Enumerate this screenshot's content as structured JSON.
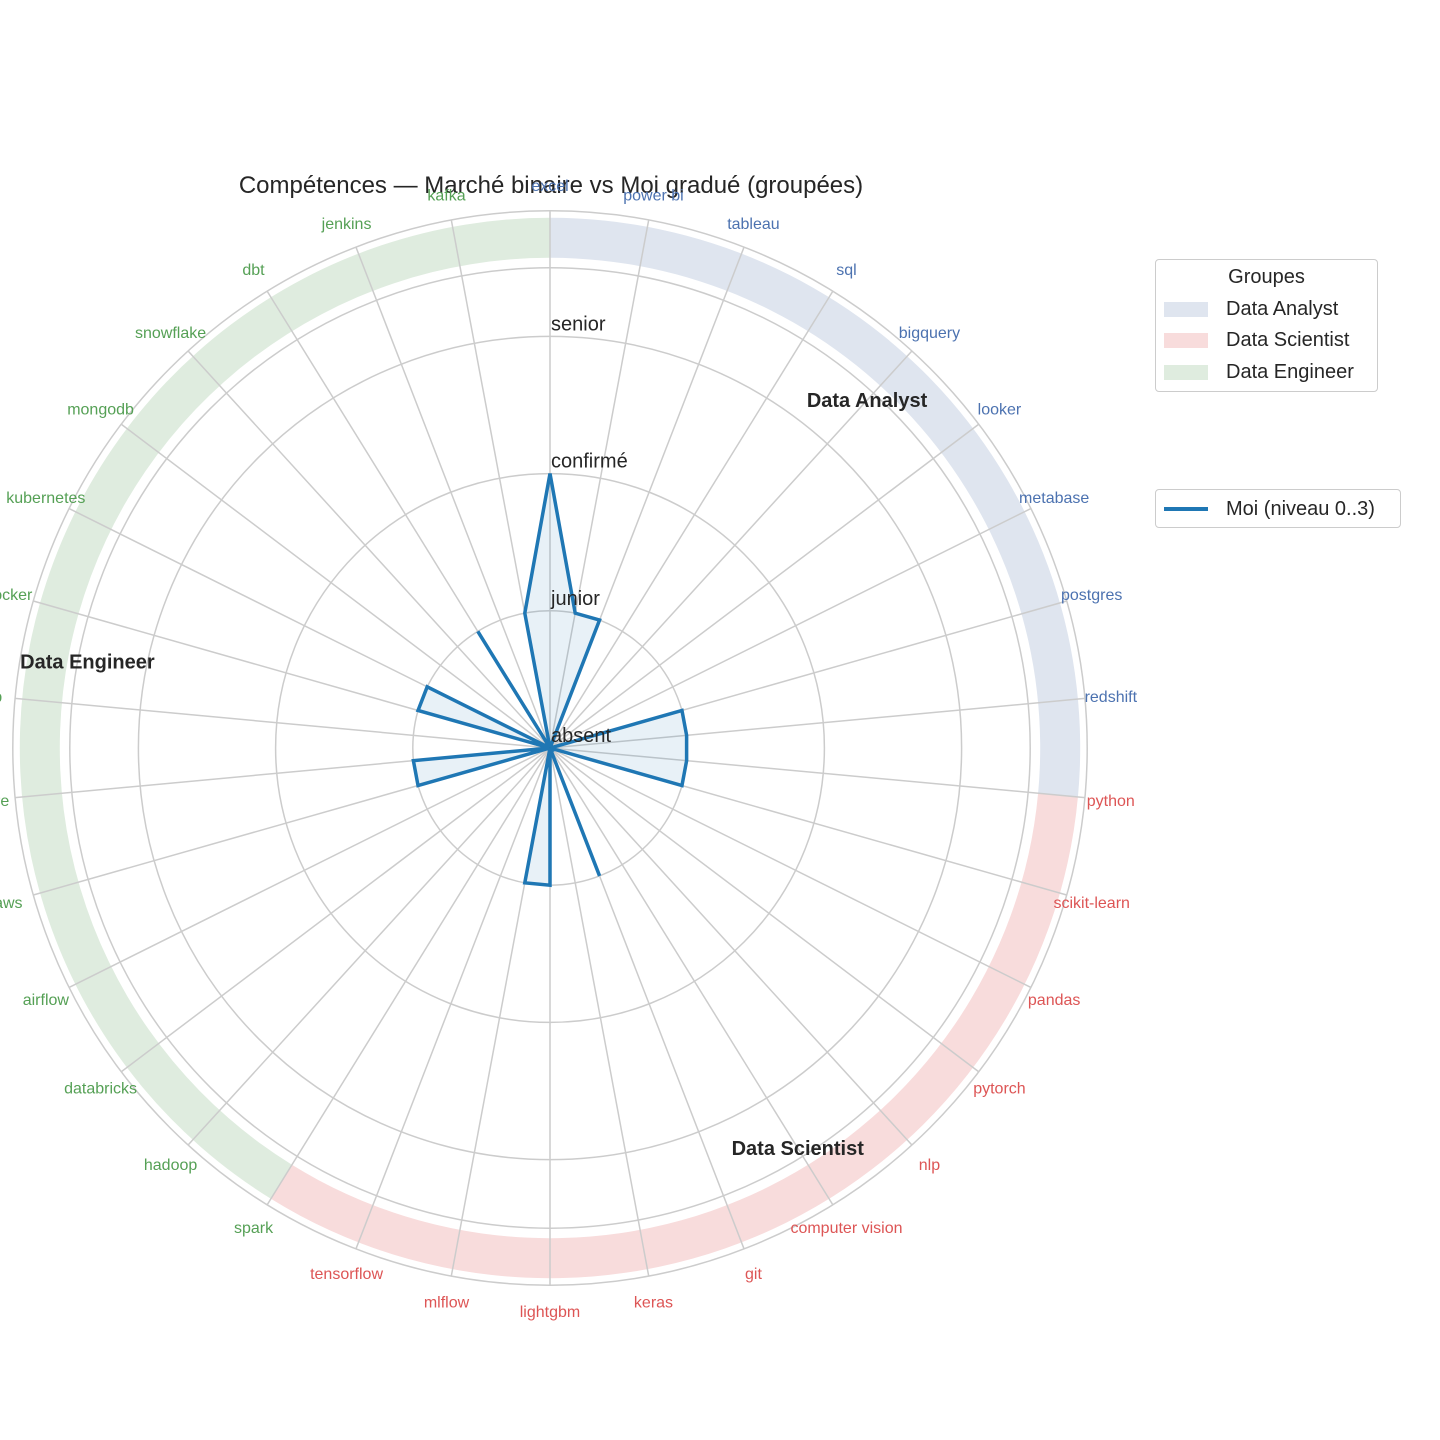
{
  "chart_data": {
    "type": "radar",
    "title": "Compétences — Marché binaire vs Moi gradué (groupées)",
    "levels": [
      "absent",
      "junior",
      "confirmé",
      "senior"
    ],
    "rlim": [
      0,
      3.5
    ],
    "grid": true,
    "skills": [
      "excel",
      "power bi",
      "tableau",
      "sql",
      "bigquery",
      "looker",
      "metabase",
      "postgres",
      "redshift",
      "python",
      "scikit-learn",
      "pandas",
      "pytorch",
      "nlp",
      "computer vision",
      "git",
      "keras",
      "lightgbm",
      "mlflow",
      "tensorflow",
      "spark",
      "hadoop",
      "databricks",
      "airflow",
      "aws",
      "azure",
      "gcp",
      "docker",
      "kubernetes",
      "mongodb",
      "snowflake",
      "dbt",
      "jenkins",
      "kafka"
    ],
    "skill_groups": [
      "Data Analyst",
      "Data Analyst",
      "Data Analyst",
      "Data Analyst",
      "Data Analyst",
      "Data Analyst",
      "Data Analyst",
      "Data Analyst",
      "Data Analyst",
      "Data Scientist",
      "Data Scientist",
      "Data Scientist",
      "Data Scientist",
      "Data Scientist",
      "Data Scientist",
      "Data Scientist",
      "Data Scientist",
      "Data Scientist",
      "Data Scientist",
      "Data Scientist",
      "Data Engineer",
      "Data Engineer",
      "Data Engineer",
      "Data Engineer",
      "Data Engineer",
      "Data Engineer",
      "Data Engineer",
      "Data Engineer",
      "Data Engineer",
      "Data Engineer",
      "Data Engineer",
      "Data Engineer",
      "Data Engineer",
      "Data Engineer"
    ],
    "groups": [
      {
        "name": "Data Analyst",
        "color": "#4c72b0",
        "band_color": "#dfe5ef"
      },
      {
        "name": "Data Scientist",
        "color": "#dd5555",
        "band_color": "#f8dcdc"
      },
      {
        "name": "Data Engineer",
        "color": "#55a055",
        "band_color": "#dfecdf"
      }
    ],
    "series": [
      {
        "name": "Moi (niveau 0..3)",
        "color": "#1f77b4",
        "values": [
          2,
          1,
          1,
          0,
          0,
          0,
          0,
          1,
          1,
          1,
          1,
          0,
          0,
          0,
          0,
          1,
          0,
          1,
          1,
          0,
          0,
          0,
          0,
          0,
          1,
          1,
          0,
          1,
          1,
          0,
          0,
          1,
          0,
          1
        ]
      }
    ],
    "legend_groups_title": "Groupes",
    "legend_placement": "right"
  }
}
